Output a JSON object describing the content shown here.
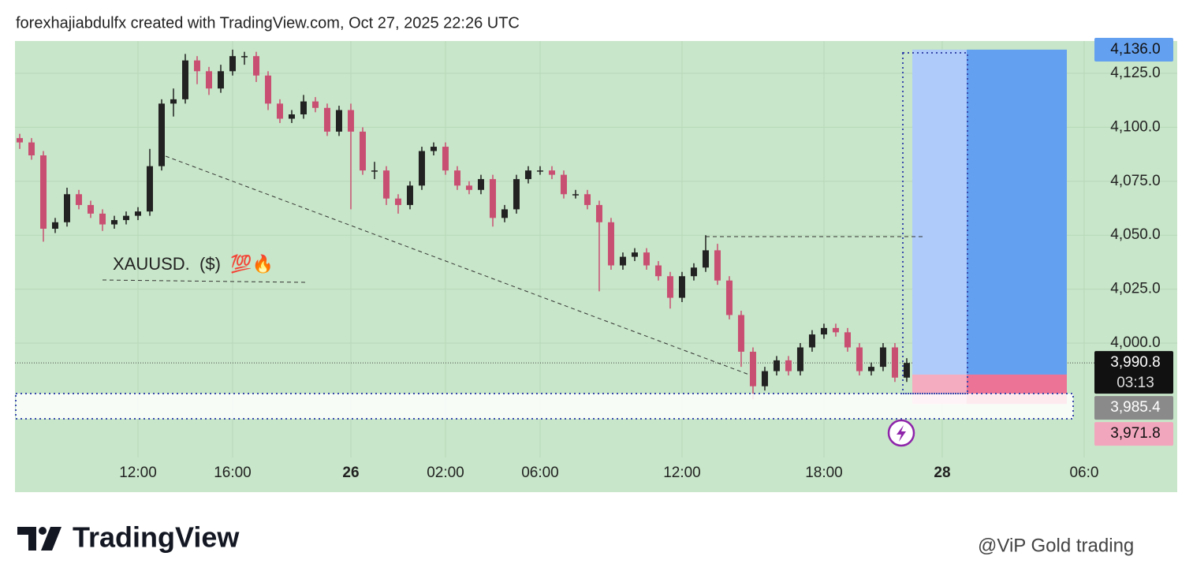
{
  "header": "forexhajiabdulfx created with TradingView.com, Oct 27, 2025 22:26 UTC",
  "chart_data": {
    "type": "candlestick",
    "annotation": "XAUUSD.  ($)  💯🔥",
    "x": [
      0.4,
      1.4,
      2.4,
      3.4,
      4.4,
      5.4,
      6.4,
      7.4,
      8.4,
      9.4,
      10.4,
      11.4,
      12.4,
      13.4,
      14.4,
      15.4,
      16.4,
      17.4,
      18.4,
      19.4,
      20.4,
      21.4,
      22.4,
      23.4,
      24.4,
      25.4,
      26.4,
      27.4,
      28.4,
      29.4,
      30.4,
      31.4,
      32.4,
      33.4,
      34.4,
      35.4,
      36.4,
      37.4,
      38.4,
      39.4,
      40.4,
      41.4,
      42.4,
      43.4,
      44.4,
      45.4,
      46.4,
      47.4,
      48.4,
      49.4,
      50.4,
      51.4,
      52.4,
      53.4,
      54.4,
      55.4,
      56.4,
      57.4,
      58.4,
      59.4,
      60.4,
      61.4,
      62.4,
      63.4,
      64.4,
      65.4,
      66.4,
      67.4,
      68.4,
      69.4,
      70.4,
      71.4,
      72.4,
      73.4,
      74.4,
      75.4
    ],
    "open": [
      4095,
      4093,
      4087,
      4053,
      4056,
      4069,
      4064,
      4060,
      4055,
      4057,
      4059,
      4061,
      4082,
      4111,
      4113,
      4131,
      4126,
      4118,
      4126,
      4133,
      4133,
      4124,
      4111,
      4104,
      4106,
      4112,
      4109,
      4098,
      4108,
      4098,
      4080,
      4080,
      4067,
      4064,
      4073,
      4089,
      4091,
      4080,
      4073,
      4071,
      4076,
      4058,
      4062,
      4076,
      4080,
      4080,
      4078,
      4069,
      4069,
      4064,
      4056,
      4036,
      4040,
      4042,
      4036,
      4031,
      4021,
      4031,
      4035,
      4043,
      4029,
      4013,
      3996,
      3980,
      3987,
      3992,
      3987,
      3998,
      4004,
      4007,
      4005,
      3998,
      3987,
      3989,
      3998,
      3984
    ],
    "high": [
      4097,
      4095,
      4089,
      4058,
      4072,
      4071,
      4066,
      4062,
      4059,
      4061,
      4063,
      4090,
      4113,
      4118,
      4134,
      4133,
      4128,
      4129,
      4136,
      4135,
      4135,
      4126,
      4113,
      4108,
      4115,
      4114,
      4111,
      4110,
      4111,
      4100,
      4084,
      4082,
      4069,
      4075,
      4091,
      4093,
      4093,
      4082,
      4075,
      4078,
      4078,
      4064,
      4078,
      4082,
      4082,
      4082,
      4080,
      4071,
      4071,
      4066,
      4058,
      4042,
      4044,
      4044,
      4038,
      4033,
      4033,
      4037,
      4050,
      4046,
      4031,
      4015,
      3998,
      3989,
      3994,
      3994,
      4000,
      4006,
      4009,
      4009,
      4007,
      4000,
      3991,
      4000,
      4000,
      3993
    ],
    "low": [
      4090,
      4085,
      4047,
      4051,
      4054,
      4062,
      4058,
      4052,
      4053,
      4055,
      4057,
      4059,
      4080,
      4105,
      4111,
      4120,
      4115,
      4116,
      4124,
      4129,
      4121,
      4108,
      4102,
      4102,
      4104,
      4107,
      4096,
      4096,
      4062,
      4078,
      4076,
      4064,
      4060,
      4062,
      4071,
      4087,
      4078,
      4071,
      4069,
      4069,
      4054,
      4056,
      4060,
      4074,
      4078,
      4076,
      4067,
      4067,
      4062,
      4024,
      4034,
      4034,
      4038,
      4034,
      4029,
      4016,
      4019,
      4029,
      4033,
      4027,
      4011,
      3989,
      3974,
      3978,
      3985,
      3985,
      3985,
      3996,
      4002,
      4003,
      3996,
      3985,
      3985,
      3987,
      3982,
      3982
    ],
    "close": [
      4093,
      4087,
      4053,
      4056,
      4069,
      4064,
      4060,
      4055,
      4057,
      4059,
      4061,
      4082,
      4111,
      4113,
      4131,
      4126,
      4118,
      4126,
      4133,
      4133,
      4124,
      4111,
      4104,
      4106,
      4112,
      4109,
      4098,
      4108,
      4098,
      4080,
      4080,
      4067,
      4064,
      4073,
      4089,
      4091,
      4080,
      4073,
      4071,
      4076,
      4058,
      4062,
      4076,
      4080,
      4080,
      4078,
      4069,
      4069,
      4064,
      4056,
      4036,
      4040,
      4042,
      4036,
      4031,
      4021,
      4031,
      4035,
      4043,
      4029,
      4013,
      3996,
      3980,
      3987,
      3992,
      3987,
      3998,
      4004,
      4007,
      4005,
      3998,
      3987,
      3989,
      3998,
      3984,
      3990.8
    ],
    "up_color": "#222222",
    "down_color": "#c94f72",
    "xlim": [
      0,
      91.27
    ],
    "xticks": [
      {
        "value": 10.4,
        "label": "12:00"
      },
      {
        "value": 18.4,
        "label": "16:00"
      },
      {
        "value": 28.4,
        "label": "26"
      },
      {
        "value": 36.4,
        "label": "02:00"
      },
      {
        "value": 44.4,
        "label": "06:00"
      },
      {
        "value": 56.4,
        "label": "12:00"
      },
      {
        "value": 68.4,
        "label": "18:00"
      },
      {
        "value": 78.4,
        "label": "28"
      },
      {
        "value": 90.4,
        "label": "06:0"
      }
    ],
    "ylim": [
      3947,
      4140
    ],
    "yticks": [
      {
        "value": 4000,
        "label": "4,000.0"
      },
      {
        "value": 4025,
        "label": "4,025.0"
      },
      {
        "value": 4050,
        "label": "4,050.0"
      },
      {
        "value": 4075,
        "label": "4,075.0"
      },
      {
        "value": 4100,
        "label": "4,100.0"
      },
      {
        "value": 4125,
        "label": "4,125.0"
      }
    ],
    "current_price": {
      "value": 3990.8,
      "label": "3,990.8"
    },
    "countdown": "03:13",
    "position": {
      "target": {
        "value": 4136,
        "label": "4,136.0"
      },
      "entry": {
        "value": 3985.4,
        "label": "3,985.4"
      },
      "stop": {
        "value": 3971.8,
        "label": "3,971.8"
      }
    }
  },
  "footer": {
    "logo": "TradingView",
    "watermark": "@ViP Gold trading"
  }
}
